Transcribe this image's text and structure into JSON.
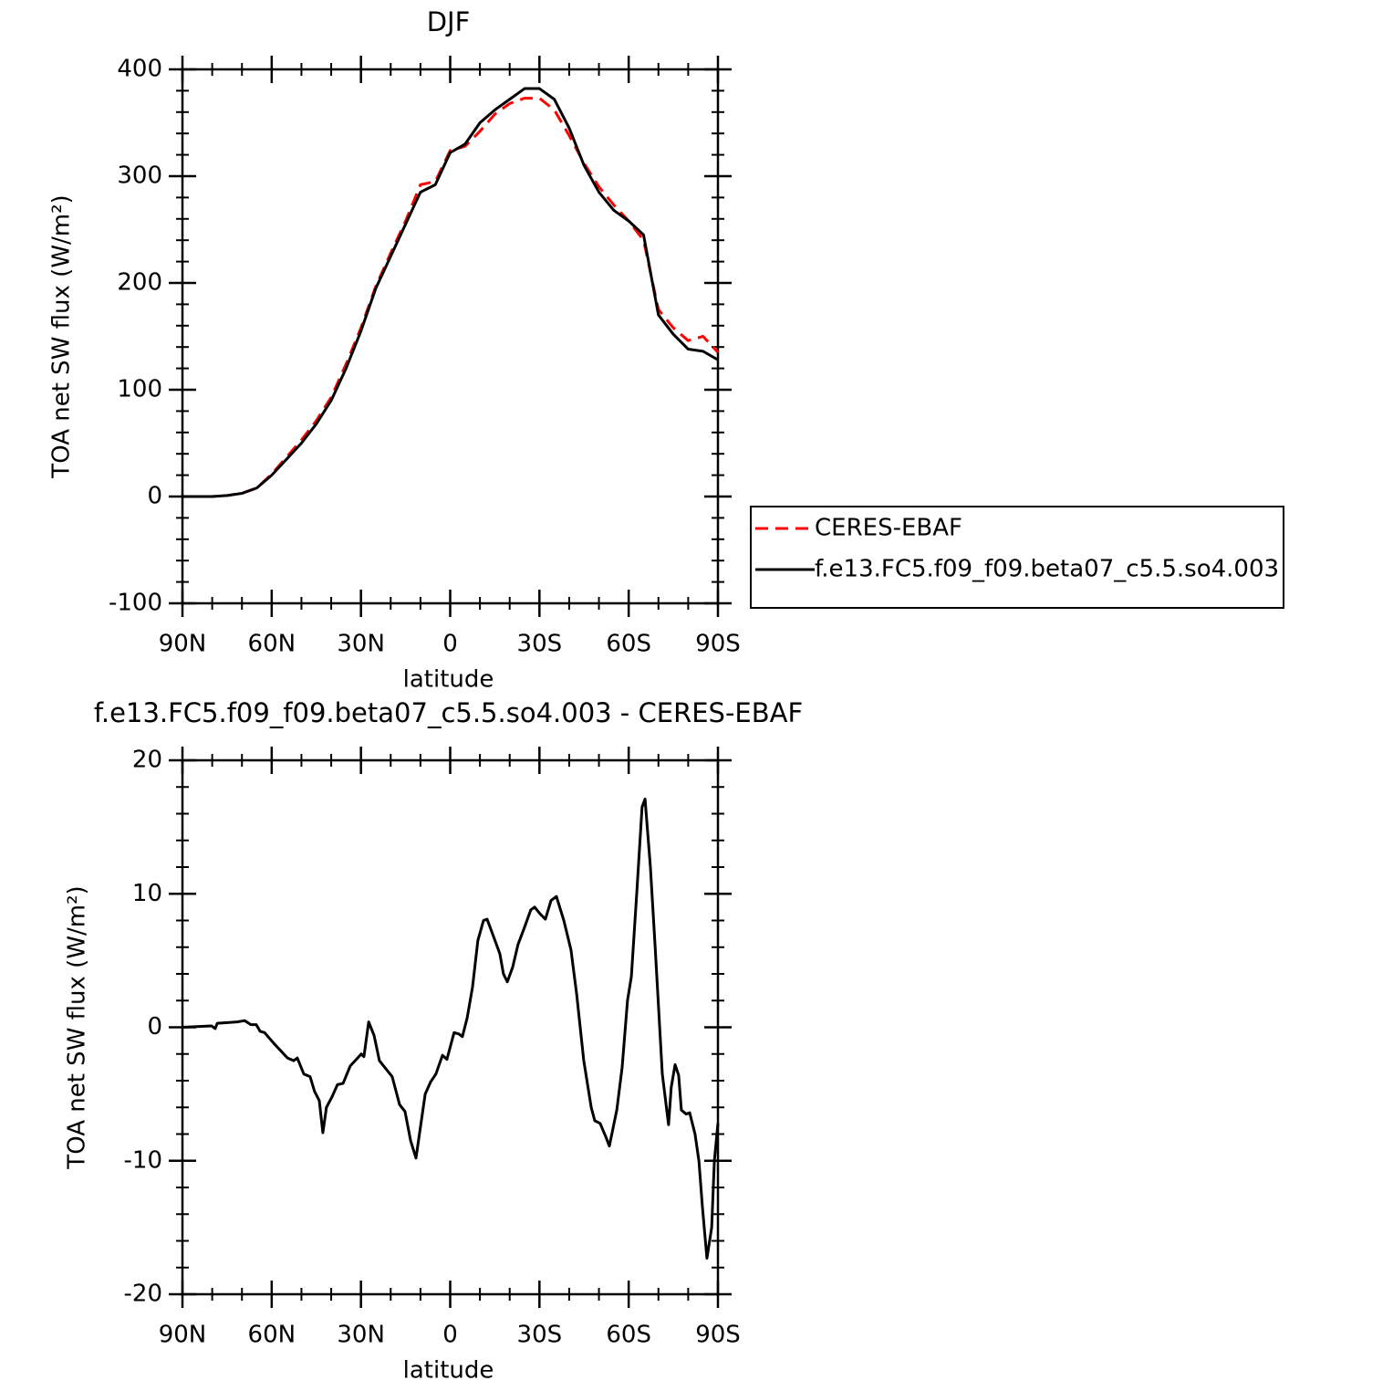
{
  "chart_data": [
    {
      "type": "line",
      "title": "DJF",
      "xlabel": "latitude",
      "ylabel": "TOA net SW flux (W/m²)",
      "xlim": [
        90,
        -90
      ],
      "ylim": [
        -100,
        400
      ],
      "xticks": [
        {
          "value": 90,
          "label": "90N"
        },
        {
          "value": 60,
          "label": "60N"
        },
        {
          "value": 30,
          "label": "30N"
        },
        0,
        {
          "value": -30,
          "label": "30S"
        },
        {
          "value": -60,
          "label": "60S"
        },
        {
          "value": -90,
          "label": "90S"
        }
      ],
      "yticks": [
        -100,
        0,
        100,
        200,
        300,
        400
      ],
      "legend": "right",
      "x": [
        90,
        85,
        80,
        75,
        70,
        65,
        60,
        55,
        50,
        45,
        40,
        35,
        30,
        25,
        20,
        15,
        10,
        5,
        0,
        -5,
        -10,
        -15,
        -20,
        -25,
        -30,
        -35,
        -40,
        -45,
        -50,
        -55,
        -60,
        -65,
        -70,
        -75,
        -80,
        -85,
        -90
      ],
      "series": [
        {
          "name": "CERES-EBAF",
          "color": "#ff0000",
          "dashed": true,
          "values": [
            0,
            0,
            0,
            1,
            3,
            8,
            21,
            37,
            53,
            71,
            93,
            124,
            158,
            197,
            228,
            258,
            292,
            295,
            324,
            328,
            342,
            358,
            368,
            373,
            373,
            362,
            338,
            312,
            290,
            273,
            258,
            240,
            175,
            158,
            146,
            150,
            135
          ]
        },
        {
          "name": "f.e13.FC5.f09_f09.beta07_c5.5.so4.003",
          "color": "#000000",
          "dashed": false,
          "values": [
            0,
            0,
            0,
            1,
            3,
            8,
            20,
            35,
            50,
            68,
            90,
            120,
            155,
            195,
            225,
            255,
            285,
            292,
            322,
            330,
            350,
            362,
            372,
            382,
            382,
            372,
            345,
            310,
            285,
            268,
            258,
            245,
            170,
            152,
            138,
            136,
            128
          ]
        }
      ]
    },
    {
      "type": "line",
      "title": "f.e13.FC5.f09_f09.beta07_c5.5.so4.003 - CERES-EBAF",
      "xlabel": "latitude",
      "ylabel": "TOA net SW flux (W/m²)",
      "xlim": [
        90,
        -90
      ],
      "ylim": [
        -20,
        20
      ],
      "xticks": [
        {
          "value": 90,
          "label": "90N"
        },
        {
          "value": 60,
          "label": "60N"
        },
        {
          "value": 30,
          "label": "30N"
        },
        0,
        {
          "value": -30,
          "label": "30S"
        },
        {
          "value": -60,
          "label": "60S"
        },
        {
          "value": -90,
          "label": "90S"
        }
      ],
      "yticks": [
        -20,
        -10,
        0,
        10,
        20
      ],
      "x": [
        90,
        80.2,
        79.0,
        78.3,
        71.6,
        69.1,
        67.0,
        65.2,
        63.9,
        62.4,
        59.3,
        54.7,
        52.6,
        51.4,
        49.2,
        47.1,
        45.6,
        44.0,
        42.8,
        41.6,
        39.7,
        37.9,
        36.0,
        33.6,
        31.1,
        29.9,
        29.0,
        27.4,
        25.6,
        23.8,
        21.3,
        19.5,
        17.0,
        15.2,
        13.3,
        11.5,
        8.4,
        6.6,
        4.8,
        2.6,
        1.1,
        -1.3,
        -2.9,
        -4.1,
        -5.7,
        -7.5,
        -9.3,
        -11.2,
        -12.4,
        -14.9,
        -16.7,
        -17.9,
        -19.2,
        -21.0,
        -22.8,
        -25.0,
        -27.1,
        -28.4,
        -30.2,
        -32.0,
        -33.9,
        -35.7,
        -38.2,
        -40.6,
        -42.5,
        -44.9,
        -47.4,
        -48.6,
        -50.4,
        -52.3,
        -53.5,
        -56.0,
        -57.8,
        -59.6,
        -60.9,
        -62.7,
        -64.5,
        -65.5,
        -67.3,
        -68.9,
        -71.3,
        -73.4,
        -74.3,
        -75.6,
        -76.8,
        -77.7,
        -79.3,
        -80.5,
        -82.3,
        -83.6,
        -84.8,
        -86.3,
        -87.9,
        -88.8,
        -90
      ],
      "series": [
        {
          "name": "f.e13.FC5.f09_f09.beta07_c5.5.so4.003",
          "color": "#000000",
          "dashed": false,
          "values": [
            0,
            0.1,
            -0.1,
            0.3,
            0.4,
            0.5,
            0.2,
            0.2,
            -0.3,
            -0.4,
            -1.2,
            -2.3,
            -2.5,
            -2.3,
            -3.5,
            -3.7,
            -4.8,
            -5.5,
            -7.9,
            -6,
            -5.2,
            -4.3,
            -4.2,
            -2.9,
            -2.3,
            -2,
            -2.2,
            0.4,
            -0.6,
            -2.5,
            -3.2,
            -3.7,
            -5.8,
            -6.3,
            -8.5,
            -9.8,
            -5,
            -4.1,
            -3.5,
            -2.1,
            -2.4,
            -0.4,
            -0.5,
            -0.7,
            0.7,
            3,
            6.5,
            8,
            8.1,
            6.6,
            5.5,
            4,
            3.4,
            4.5,
            6.2,
            7.5,
            8.8,
            9,
            8.5,
            8.1,
            9.5,
            9.8,
            8,
            5.8,
            2.5,
            -2.5,
            -6,
            -7,
            -7.2,
            -8.2,
            -8.9,
            -6.2,
            -3,
            2,
            3.8,
            10,
            16.5,
            17.1,
            12,
            6,
            -3.5,
            -7.3,
            -4.5,
            -2.8,
            -3.6,
            -6.2,
            -6.5,
            -6.4,
            -8,
            -10,
            -13.5,
            -17.3,
            -15,
            -10,
            -7.2
          ]
        }
      ]
    }
  ]
}
